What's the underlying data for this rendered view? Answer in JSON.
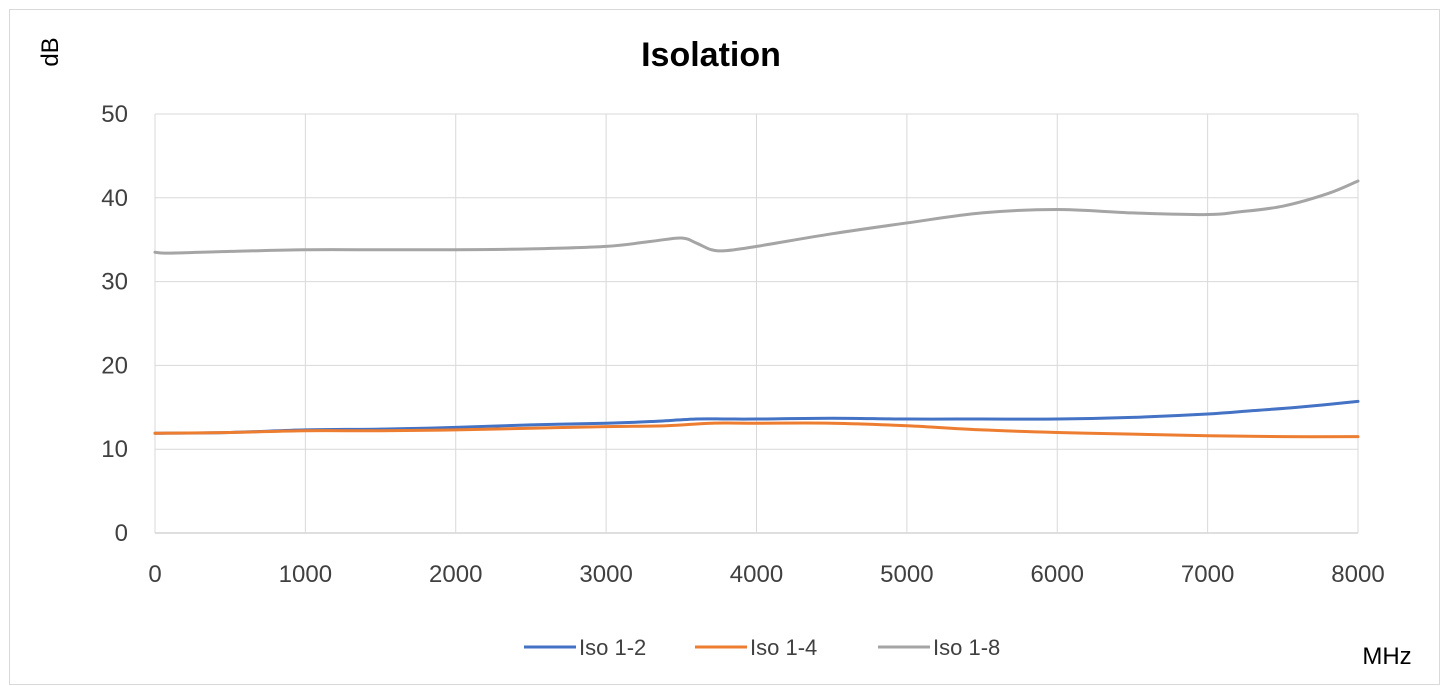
{
  "chart_data": {
    "type": "line",
    "title": "Isolation",
    "xlabel": "MHz",
    "ylabel": "dB",
    "xlim": [
      0,
      8000
    ],
    "ylim": [
      0,
      50
    ],
    "xticks": [
      0,
      1000,
      2000,
      3000,
      4000,
      5000,
      6000,
      7000,
      8000
    ],
    "yticks": [
      0,
      10,
      20,
      30,
      40,
      50
    ],
    "grid": true,
    "legend_position": "bottom",
    "series": [
      {
        "name": "Iso 1-2",
        "color": "#4472c4",
        "x": [
          0,
          500,
          1000,
          1500,
          2000,
          2500,
          3000,
          3300,
          3600,
          3800,
          4000,
          4500,
          5000,
          5500,
          6000,
          6500,
          7000,
          7300,
          7600,
          8000
        ],
        "y": [
          11.9,
          12.0,
          12.3,
          12.4,
          12.6,
          12.9,
          13.1,
          13.3,
          13.6,
          13.6,
          13.6,
          13.7,
          13.6,
          13.6,
          13.6,
          13.8,
          14.2,
          14.6,
          15.0,
          15.7
        ]
      },
      {
        "name": "Iso 1-4",
        "color": "#ed7d31",
        "x": [
          0,
          500,
          1000,
          1500,
          2000,
          2500,
          3000,
          3400,
          3700,
          4000,
          4500,
          5000,
          5500,
          6000,
          6500,
          7000,
          7500,
          8000
        ],
        "y": [
          11.9,
          12.0,
          12.2,
          12.2,
          12.3,
          12.5,
          12.7,
          12.8,
          13.1,
          13.1,
          13.1,
          12.8,
          12.3,
          12.0,
          11.8,
          11.6,
          11.5,
          11.5
        ]
      },
      {
        "name": "Iso 1-8",
        "color": "#a5a5a5",
        "x": [
          0,
          100,
          500,
          1000,
          1500,
          2000,
          2500,
          3000,
          3300,
          3500,
          3600,
          3700,
          3800,
          4000,
          4500,
          5000,
          5500,
          6000,
          6500,
          7000,
          7200,
          7500,
          7800,
          8000
        ],
        "y": [
          33.5,
          33.4,
          33.6,
          33.8,
          33.8,
          33.8,
          33.9,
          34.2,
          34.8,
          35.2,
          34.6,
          33.8,
          33.7,
          34.2,
          35.7,
          37.0,
          38.2,
          38.6,
          38.2,
          38.0,
          38.3,
          39.0,
          40.5,
          42.0
        ]
      }
    ]
  }
}
